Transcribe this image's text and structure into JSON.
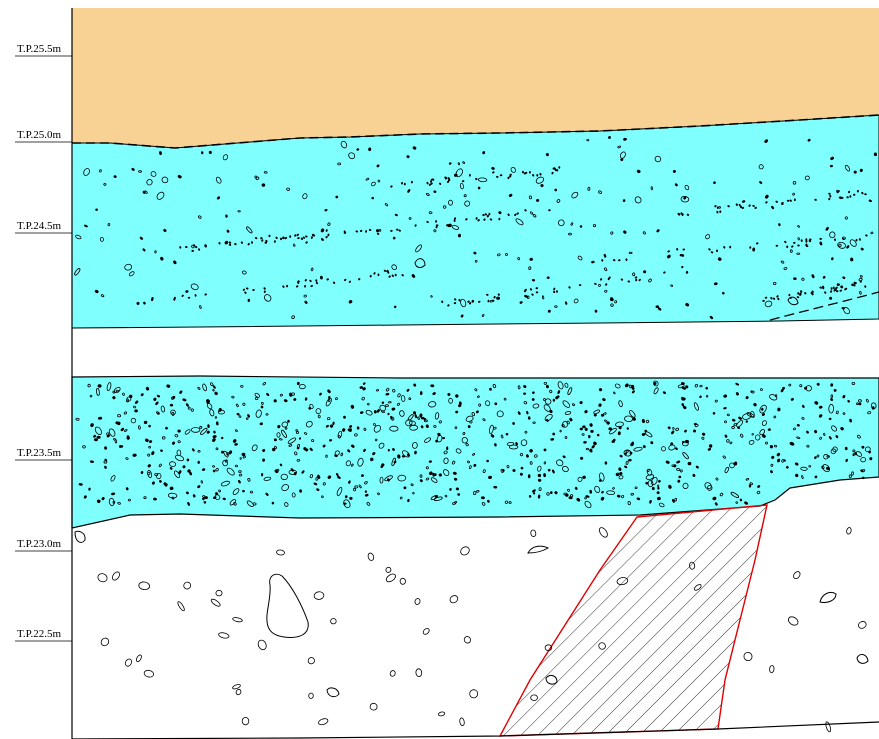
{
  "diagram": {
    "type": "stratigraphic-section",
    "colors": {
      "upper_layer": "#F8D294",
      "gravel_layer": "#80FFFF",
      "base_layer": "#FFFFFF",
      "feature_outline": "#E00000",
      "line": "#000000"
    },
    "elevation_labels": [
      {
        "id": "tp-25-5",
        "text": "T.P.25.5m"
      },
      {
        "id": "tp-25-0",
        "text": "T.P.25.0m"
      },
      {
        "id": "tp-24-5",
        "text": "T.P.24.5m"
      },
      {
        "id": "tp-23-5",
        "text": "T.P.23.5m"
      },
      {
        "id": "tp-23-0",
        "text": "T.P.23.0m"
      },
      {
        "id": "tp-22-5",
        "text": "T.P.22.5m"
      }
    ]
  }
}
